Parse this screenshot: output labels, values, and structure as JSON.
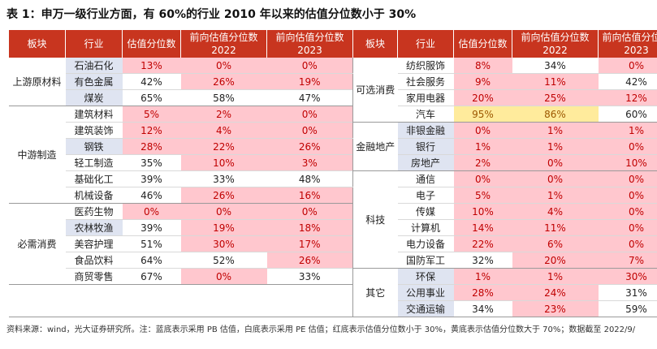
{
  "title": "表 1：申万一级行业方面，有 60%的行业 2010 年以来的估值分位数小于 30%",
  "headers": {
    "block": "板块",
    "industry": "行业",
    "pct": "估值分位数",
    "fwd2022_line1": "前向估值分位数",
    "fwd2022_line2": "2022",
    "fwd2023_line1": "前向估值分位数",
    "fwd2023_line2": "2023"
  },
  "left_groups": [
    {
      "name": "上游原材料",
      "rows": [
        {
          "industry": "石油石化",
          "ind_bg": "bl",
          "pct": "13%",
          "pct_c": "pk",
          "f22": "0%",
          "f22_c": "pk",
          "f23": "0%",
          "f23_c": "pk"
        },
        {
          "industry": "有色金属",
          "ind_bg": "bl",
          "pct": "42%",
          "pct_c": "wt",
          "f22": "26%",
          "f22_c": "pk",
          "f23": "19%",
          "f23_c": "pk"
        },
        {
          "industry": "煤炭",
          "ind_bg": "bl",
          "pct": "65%",
          "pct_c": "wt",
          "f22": "58%",
          "f22_c": "wt",
          "f23": "47%",
          "f23_c": "wt"
        }
      ]
    },
    {
      "name": "中游制造",
      "rows": [
        {
          "industry": "建筑材料",
          "ind_bg": "wt",
          "pct": "5%",
          "pct_c": "pk",
          "f22": "2%",
          "f22_c": "pk",
          "f23": "0%",
          "f23_c": "pk"
        },
        {
          "industry": "建筑装饰",
          "ind_bg": "wt",
          "pct": "12%",
          "pct_c": "pk",
          "f22": "4%",
          "f22_c": "pk",
          "f23": "0%",
          "f23_c": "pk"
        },
        {
          "industry": "钢铁",
          "ind_bg": "bl",
          "pct": "28%",
          "pct_c": "pk",
          "f22": "22%",
          "f22_c": "pk",
          "f23": "26%",
          "f23_c": "pk"
        },
        {
          "industry": "轻工制造",
          "ind_bg": "wt",
          "pct": "35%",
          "pct_c": "wt",
          "f22": "10%",
          "f22_c": "pk",
          "f23": "3%",
          "f23_c": "pk"
        },
        {
          "industry": "基础化工",
          "ind_bg": "wt",
          "pct": "39%",
          "pct_c": "wt",
          "f22": "33%",
          "f22_c": "wt",
          "f23": "48%",
          "f23_c": "wt"
        },
        {
          "industry": "机械设备",
          "ind_bg": "wt",
          "pct": "46%",
          "pct_c": "wt",
          "f22": "26%",
          "f22_c": "pk",
          "f23": "16%",
          "f23_c": "pk"
        }
      ]
    },
    {
      "name": "必需消费",
      "rows": [
        {
          "industry": "医药生物",
          "ind_bg": "wt",
          "pct": "0%",
          "pct_c": "pk",
          "f22": "0%",
          "f22_c": "pk",
          "f23": "0%",
          "f23_c": "pk"
        },
        {
          "industry": "农林牧渔",
          "ind_bg": "bl",
          "pct": "39%",
          "pct_c": "wt",
          "f22": "19%",
          "f22_c": "pk",
          "f23": "18%",
          "f23_c": "pk"
        },
        {
          "industry": "美容护理",
          "ind_bg": "wt",
          "pct": "51%",
          "pct_c": "wt",
          "f22": "30%",
          "f22_c": "pk",
          "f23": "17%",
          "f23_c": "pk"
        },
        {
          "industry": "食品饮料",
          "ind_bg": "wt",
          "pct": "64%",
          "pct_c": "wt",
          "f22": "52%",
          "f22_c": "wt",
          "f23": "26%",
          "f23_c": "pk"
        },
        {
          "industry": "商贸零售",
          "ind_bg": "wt",
          "pct": "67%",
          "pct_c": "wt",
          "f22": "0%",
          "f22_c": "pk",
          "f23": "33%",
          "f23_c": "wt"
        }
      ]
    }
  ],
  "right_groups": [
    {
      "name": "可选消费",
      "rows": [
        {
          "industry": "纺织服饰",
          "ind_bg": "wt",
          "pct": "8%",
          "pct_c": "pk",
          "f22": "34%",
          "f22_c": "wt",
          "f23": "0%",
          "f23_c": "pk"
        },
        {
          "industry": "社会服务",
          "ind_bg": "wt",
          "pct": "9%",
          "pct_c": "pk",
          "f22": "11%",
          "f22_c": "pk",
          "f23": "42%",
          "f23_c": "wt"
        },
        {
          "industry": "家用电器",
          "ind_bg": "wt",
          "pct": "20%",
          "pct_c": "pk",
          "f22": "25%",
          "f22_c": "pk",
          "f23": "12%",
          "f23_c": "pk"
        },
        {
          "industry": "汽车",
          "ind_bg": "wt",
          "pct": "95%",
          "pct_c": "yl",
          "f22": "86%",
          "f22_c": "yl",
          "f23": "60%",
          "f23_c": "wt"
        }
      ]
    },
    {
      "name": "金融地产",
      "rows": [
        {
          "industry": "非银金融",
          "ind_bg": "bl",
          "pct": "0%",
          "pct_c": "pk",
          "f22": "1%",
          "f22_c": "pk",
          "f23": "1%",
          "f23_c": "pk"
        },
        {
          "industry": "银行",
          "ind_bg": "bl",
          "pct": "1%",
          "pct_c": "pk",
          "f22": "1%",
          "f22_c": "pk",
          "f23": "0%",
          "f23_c": "pk"
        },
        {
          "industry": "房地产",
          "ind_bg": "bl",
          "pct": "2%",
          "pct_c": "pk",
          "f22": "0%",
          "f22_c": "pk",
          "f23": "10%",
          "f23_c": "pk"
        }
      ]
    },
    {
      "name": "科技",
      "rows": [
        {
          "industry": "通信",
          "ind_bg": "wt",
          "pct": "0%",
          "pct_c": "pk",
          "f22": "0%",
          "f22_c": "pk",
          "f23": "0%",
          "f23_c": "pk"
        },
        {
          "industry": "电子",
          "ind_bg": "wt",
          "pct": "5%",
          "pct_c": "pk",
          "f22": "1%",
          "f22_c": "pk",
          "f23": "0%",
          "f23_c": "pk"
        },
        {
          "industry": "传媒",
          "ind_bg": "wt",
          "pct": "10%",
          "pct_c": "pk",
          "f22": "4%",
          "f22_c": "pk",
          "f23": "0%",
          "f23_c": "pk"
        },
        {
          "industry": "计算机",
          "ind_bg": "wt",
          "pct": "14%",
          "pct_c": "pk",
          "f22": "11%",
          "f22_c": "pk",
          "f23": "0%",
          "f23_c": "pk"
        },
        {
          "industry": "电力设备",
          "ind_bg": "wt",
          "pct": "22%",
          "pct_c": "pk",
          "f22": "6%",
          "f22_c": "pk",
          "f23": "0%",
          "f23_c": "pk"
        },
        {
          "industry": "国防军工",
          "ind_bg": "wt",
          "pct": "32%",
          "pct_c": "wt",
          "f22": "20%",
          "f22_c": "pk",
          "f23": "7%",
          "f23_c": "pk"
        }
      ]
    },
    {
      "name": "其它",
      "rows": [
        {
          "industry": "环保",
          "ind_bg": "bl",
          "pct": "1%",
          "pct_c": "pk",
          "f22": "1%",
          "f22_c": "pk",
          "f23": "30%",
          "f23_c": "pk"
        },
        {
          "industry": "公用事业",
          "ind_bg": "bl",
          "pct": "28%",
          "pct_c": "pk",
          "f22": "24%",
          "f22_c": "pk",
          "f23": "31%",
          "f23_c": "wt"
        },
        {
          "industry": "交通运输",
          "ind_bg": "bl",
          "pct": "34%",
          "pct_c": "wt",
          "f22": "23%",
          "f22_c": "pk",
          "f23": "59%",
          "f23_c": "wt"
        }
      ]
    }
  ],
  "footer": "资料来源：wind，光大证券研究所。注：蓝底表示采用 PB 估值，白底表示采用 PE 估值；红底表示估值分位数小于 30%，黄底表示估值分位数大于 70%；数据截至 2022/9/"
}
